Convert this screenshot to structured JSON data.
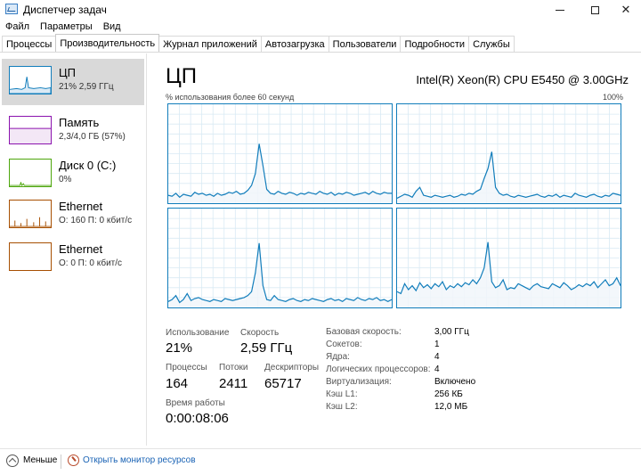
{
  "window": {
    "title": "Диспетчер задач",
    "close_glyph": "✕",
    "icons": [
      "task-manager-icon",
      "minimize-icon",
      "maximize-icon",
      "close-icon"
    ]
  },
  "menu": [
    "Файл",
    "Параметры",
    "Вид"
  ],
  "tabs": [
    "Процессы",
    "Производительность",
    "Журнал приложений",
    "Автозагрузка",
    "Пользователи",
    "Подробности",
    "Службы"
  ],
  "active_tab": "Производительность",
  "sidebar": {
    "items": [
      {
        "title": "ЦП",
        "sub": "21% 2,59 ГГц",
        "color": "#117dbb"
      },
      {
        "title": "Память",
        "sub": "2,3/4,0 ГБ (57%)",
        "color": "#8b12ae"
      },
      {
        "title": "Диск 0 (C:)",
        "sub": "0%",
        "color": "#4da60c"
      },
      {
        "title": "Ethernet",
        "sub": "О: 160 П: 0 кбит/с",
        "color": "#a74f01"
      },
      {
        "title": "Ethernet",
        "sub": "О: 0 П: 0 кбит/с",
        "color": "#a74f01"
      }
    ]
  },
  "cpu": {
    "heading": "ЦП",
    "model": "Intel(R) Xeon(R) CPU E5450 @ 3.00GHz",
    "graph_caption": "% использования более 60 секунд",
    "graph_max": "100%",
    "line_color": "#117dbb",
    "fill_color": "#f1f6fa",
    "grid_color": "#d9eaf4"
  },
  "stats": {
    "usage_label": "Использование",
    "usage_value": "21%",
    "speed_label": "Скорость",
    "speed_value": "2,59 ГГц",
    "processes_label": "Процессы",
    "processes_value": "164",
    "threads_label": "Потоки",
    "threads_value": "2411",
    "handles_label": "Дескрипторы",
    "handles_value": "65717",
    "uptime_label": "Время работы",
    "uptime_value": "0:00:08:06"
  },
  "specs": [
    {
      "label": "Базовая скорость:",
      "value": "3,00 ГГц"
    },
    {
      "label": "Сокетов:",
      "value": "1"
    },
    {
      "label": "Ядра:",
      "value": "4"
    },
    {
      "label": "Логических процессоров:",
      "value": "4"
    },
    {
      "label": "Виртуализация:",
      "value": "Включено"
    },
    {
      "label": "Кэш L1:",
      "value": "256 КБ"
    },
    {
      "label": "Кэш L2:",
      "value": "12,0 МБ"
    }
  ],
  "footer": {
    "less_label": "Меньше",
    "resmon_label": "Открыть монитор ресурсов",
    "icons": [
      "chevron-up-icon",
      "resource-monitor-icon"
    ]
  },
  "chart_data": [
    {
      "type": "line",
      "name": "core-1",
      "ylim": [
        0,
        100
      ],
      "y": [
        8,
        7,
        10,
        6,
        9,
        8,
        7,
        11,
        9,
        10,
        8,
        9,
        7,
        10,
        8,
        9,
        11,
        10,
        12,
        9,
        10,
        13,
        18,
        30,
        60,
        38,
        14,
        10,
        9,
        12,
        10,
        9,
        11,
        10,
        8,
        10,
        9,
        11,
        10,
        9,
        12,
        10,
        9,
        11,
        8,
        10,
        9,
        11,
        10,
        8,
        9,
        10,
        11,
        9,
        12,
        10,
        9,
        11,
        10,
        10
      ]
    },
    {
      "type": "line",
      "name": "core-2",
      "ylim": [
        0,
        100
      ],
      "y": [
        5,
        7,
        9,
        8,
        6,
        12,
        16,
        8,
        7,
        6,
        8,
        7,
        6,
        7,
        8,
        6,
        7,
        9,
        8,
        10,
        9,
        12,
        14,
        25,
        35,
        52,
        16,
        10,
        8,
        9,
        7,
        6,
        8,
        7,
        6,
        7,
        8,
        9,
        7,
        6,
        8,
        7,
        9,
        6,
        8,
        7,
        6,
        10,
        8,
        7,
        6,
        8,
        9,
        7,
        6,
        8,
        7,
        10,
        9,
        8
      ]
    },
    {
      "type": "line",
      "name": "core-3",
      "ylim": [
        0,
        100
      ],
      "y": [
        6,
        8,
        12,
        5,
        8,
        14,
        7,
        9,
        10,
        8,
        7,
        6,
        8,
        7,
        6,
        9,
        8,
        7,
        8,
        9,
        10,
        12,
        16,
        35,
        65,
        22,
        8,
        7,
        12,
        8,
        7,
        6,
        8,
        9,
        7,
        6,
        8,
        7,
        9,
        8,
        7,
        6,
        8,
        9,
        7,
        8,
        6,
        9,
        8,
        7,
        10,
        8,
        7,
        9,
        8,
        10,
        7,
        8,
        6,
        8
      ]
    },
    {
      "type": "line",
      "name": "core-4",
      "ylim": [
        0,
        100
      ],
      "y": [
        16,
        14,
        24,
        18,
        22,
        17,
        25,
        20,
        23,
        19,
        24,
        21,
        26,
        18,
        22,
        20,
        24,
        21,
        25,
        23,
        28,
        24,
        30,
        40,
        66,
        26,
        20,
        22,
        28,
        18,
        20,
        19,
        24,
        22,
        20,
        18,
        22,
        24,
        21,
        20,
        19,
        24,
        22,
        20,
        25,
        22,
        18,
        20,
        23,
        21,
        24,
        22,
        26,
        20,
        24,
        28,
        22,
        24,
        30,
        22
      ]
    }
  ]
}
